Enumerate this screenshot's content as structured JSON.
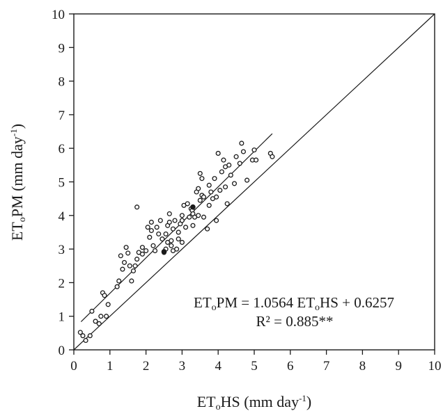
{
  "chart_data": {
    "type": "scatter",
    "title": "",
    "xlabel": {
      "main": "ET",
      "sub": "o",
      "rest": "HS (mm day",
      "sup": "-1",
      "close": ")"
    },
    "ylabel": {
      "main": "ET",
      "sub": "o",
      "rest": "PM (mm day",
      "sup": "-1",
      "close": ")"
    },
    "xlim": [
      0,
      10
    ],
    "ylim": [
      0,
      10
    ],
    "xticks": [
      "0",
      "1",
      "2",
      "3",
      "4",
      "5",
      "6",
      "7",
      "8",
      "9",
      "10"
    ],
    "yticks": [
      "0",
      "1",
      "2",
      "3",
      "4",
      "5",
      "6",
      "7",
      "8",
      "9",
      "10"
    ],
    "grid": false,
    "legend": "none",
    "equation": {
      "lhs_main": "ET",
      "lhs_sub": "o",
      "lhs_rest": "PM = 1.0564 ET",
      "rhs_sub": "o",
      "rhs_rest": "HS + 0.6257"
    },
    "r_squared": "R² = 0.885**",
    "regression": {
      "slope": 1.0564,
      "intercept": 0.6257,
      "x_range": [
        0.2,
        5.5
      ]
    },
    "reference_line": {
      "from": [
        0,
        0
      ],
      "to": [
        10,
        10
      ]
    },
    "points": [
      [
        0.18,
        0.52
      ],
      [
        0.25,
        0.42
      ],
      [
        0.33,
        0.28
      ],
      [
        0.45,
        0.42
      ],
      [
        0.5,
        1.15
      ],
      [
        0.6,
        0.85
      ],
      [
        0.7,
        0.78
      ],
      [
        0.75,
        1.0
      ],
      [
        0.8,
        1.7
      ],
      [
        0.85,
        1.62
      ],
      [
        0.9,
        1.0
      ],
      [
        0.95,
        1.35
      ],
      [
        1.2,
        1.88
      ],
      [
        1.25,
        2.05
      ],
      [
        1.3,
        2.8
      ],
      [
        1.35,
        2.4
      ],
      [
        1.4,
        2.6
      ],
      [
        1.45,
        3.05
      ],
      [
        1.5,
        2.88
      ],
      [
        1.55,
        2.5
      ],
      [
        1.6,
        2.05
      ],
      [
        1.65,
        2.35
      ],
      [
        1.7,
        2.5
      ],
      [
        1.75,
        4.25
      ],
      [
        1.75,
        2.7
      ],
      [
        1.8,
        2.9
      ],
      [
        1.9,
        3.05
      ],
      [
        2.0,
        2.95
      ],
      [
        2.1,
        3.35
      ],
      [
        2.15,
        3.55
      ],
      [
        2.15,
        3.8
      ],
      [
        2.2,
        3.1
      ],
      [
        2.25,
        2.95
      ],
      [
        2.3,
        3.65
      ],
      [
        2.35,
        3.45
      ],
      [
        2.4,
        3.85
      ],
      [
        2.5,
        2.9
      ],
      [
        2.55,
        3.0
      ],
      [
        2.6,
        3.2
      ],
      [
        2.6,
        3.7
      ],
      [
        2.65,
        4.05
      ],
      [
        2.65,
        3.8
      ],
      [
        2.7,
        3.1
      ],
      [
        2.7,
        3.25
      ],
      [
        2.75,
        2.95
      ],
      [
        2.75,
        3.6
      ],
      [
        2.8,
        3.85
      ],
      [
        2.85,
        3.0
      ],
      [
        2.9,
        3.5
      ],
      [
        2.95,
        3.75
      ],
      [
        3.0,
        4.0
      ],
      [
        3.0,
        3.85
      ],
      [
        3.0,
        3.2
      ],
      [
        3.05,
        4.3
      ],
      [
        3.1,
        3.65
      ],
      [
        3.15,
        4.35
      ],
      [
        3.2,
        3.95
      ],
      [
        3.25,
        4.2
      ],
      [
        3.28,
        4.15
      ],
      [
        3.3,
        3.7
      ],
      [
        3.3,
        4.05
      ],
      [
        3.35,
        3.95
      ],
      [
        3.4,
        4.7
      ],
      [
        3.45,
        4.0
      ],
      [
        3.5,
        5.25
      ],
      [
        3.5,
        4.45
      ],
      [
        3.55,
        4.6
      ],
      [
        3.55,
        5.1
      ],
      [
        3.6,
        3.95
      ],
      [
        3.7,
        3.6
      ],
      [
        3.75,
        4.3
      ],
      [
        3.8,
        4.7
      ],
      [
        3.85,
        4.5
      ],
      [
        3.9,
        5.1
      ],
      [
        3.95,
        3.85
      ],
      [
        3.95,
        4.55
      ],
      [
        4.0,
        5.85
      ],
      [
        4.05,
        4.75
      ],
      [
        4.1,
        5.3
      ],
      [
        4.15,
        5.65
      ],
      [
        4.2,
        5.45
      ],
      [
        4.25,
        4.35
      ],
      [
        4.3,
        5.5
      ],
      [
        4.35,
        5.2
      ],
      [
        4.45,
        4.95
      ],
      [
        4.5,
        5.75
      ],
      [
        4.6,
        5.55
      ],
      [
        4.65,
        6.15
      ],
      [
        4.7,
        5.9
      ],
      [
        4.8,
        5.05
      ],
      [
        4.95,
        5.65
      ],
      [
        5.0,
        5.95
      ],
      [
        5.05,
        5.65
      ],
      [
        5.45,
        5.85
      ],
      [
        5.5,
        5.75
      ],
      [
        2.45,
        3.3
      ],
      [
        2.9,
        3.3
      ],
      [
        3.45,
        4.8
      ],
      [
        3.75,
        4.9
      ],
      [
        4.2,
        4.85
      ],
      [
        2.05,
        3.65
      ],
      [
        2.55,
        3.45
      ],
      [
        1.9,
        2.85
      ],
      [
        3.6,
        4.55
      ]
    ],
    "filled_points": [
      [
        2.5,
        2.92
      ],
      [
        3.3,
        4.25
      ]
    ]
  }
}
